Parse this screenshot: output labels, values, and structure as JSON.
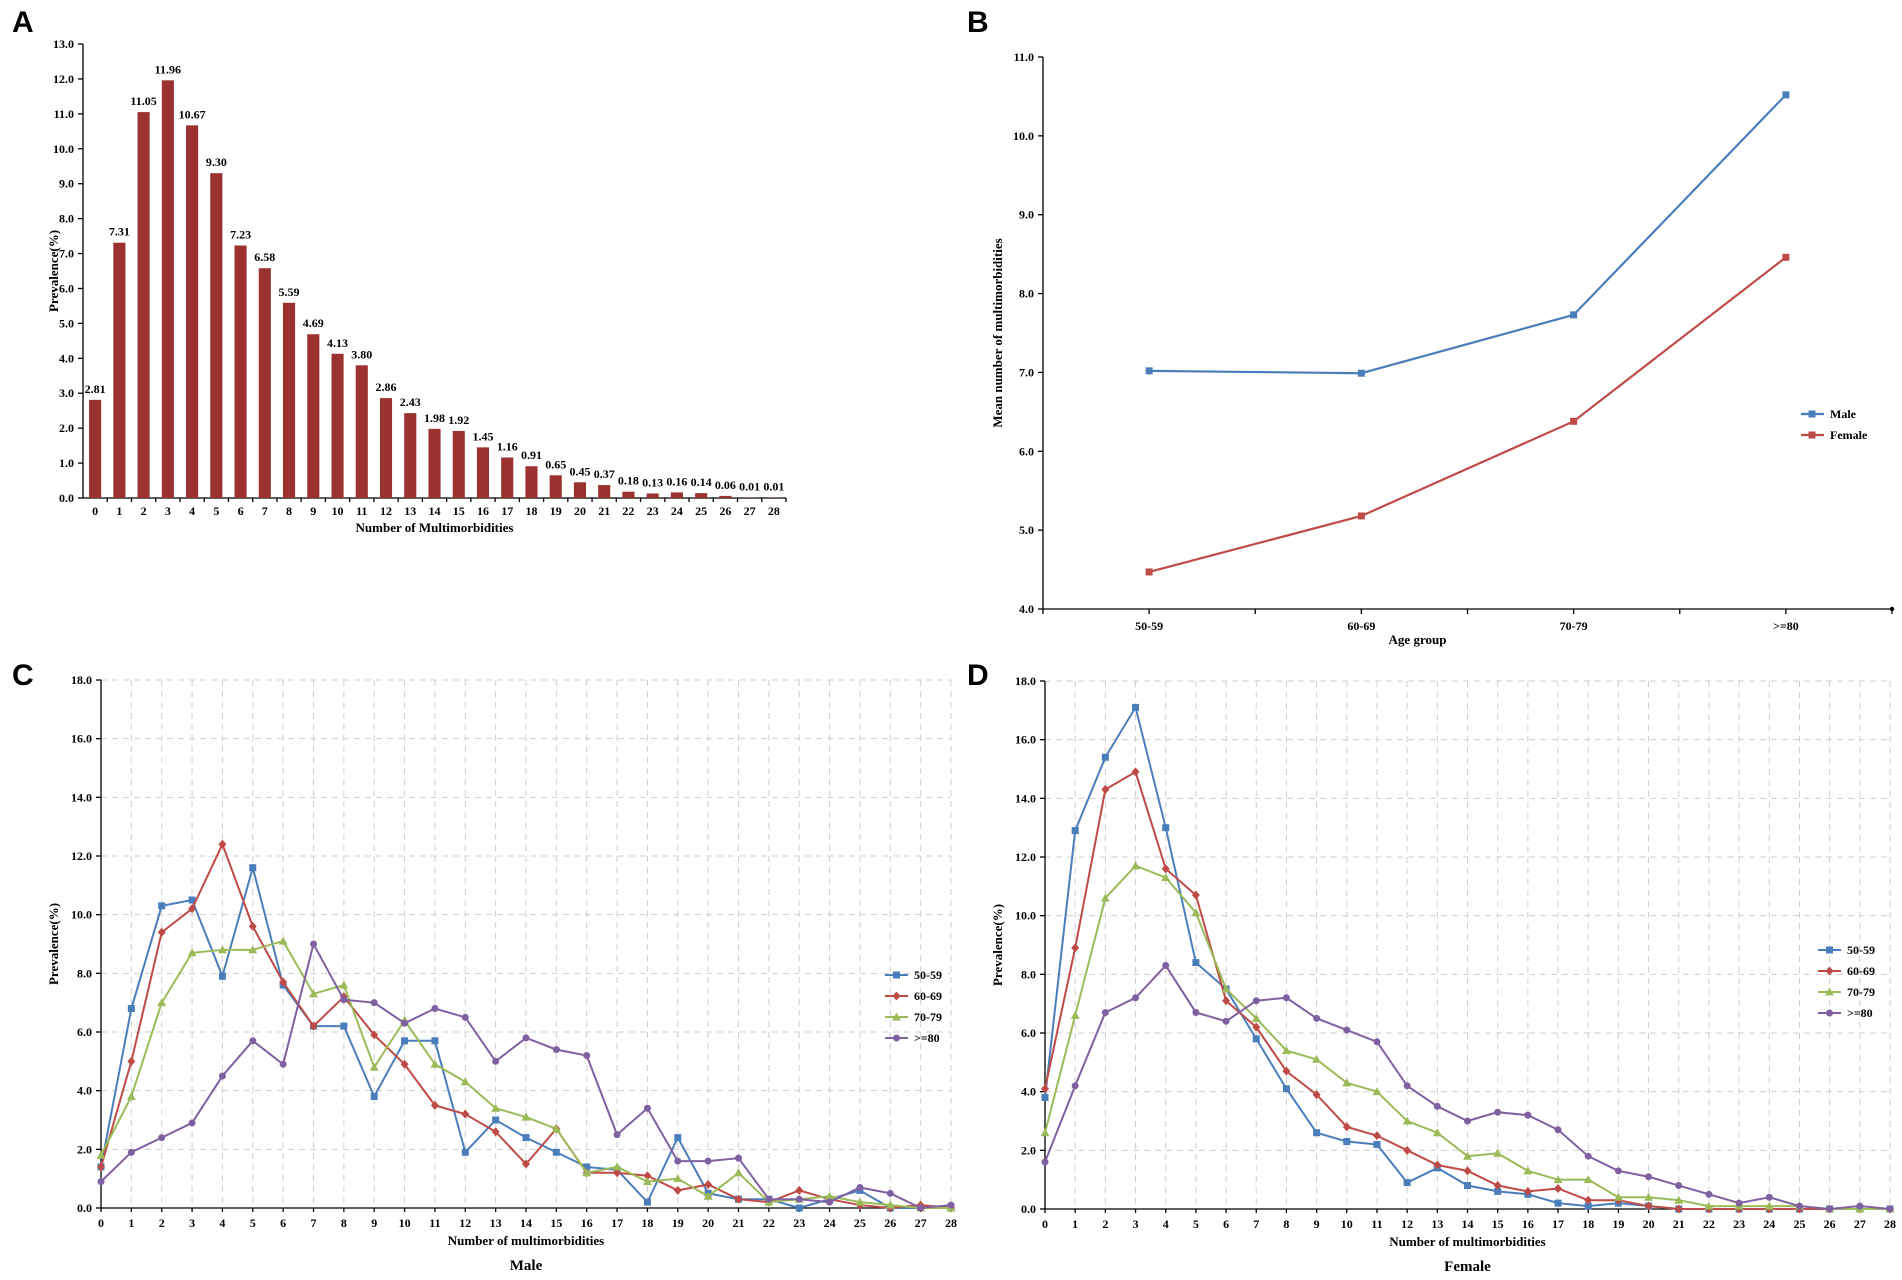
{
  "chart_data": [
    {
      "panel": "A",
      "type": "bar",
      "title": "",
      "xlabel": "Number of Multimorbidities",
      "ylabel": "Prevalence(%)",
      "ylim": [
        0,
        13
      ],
      "ytick_labels": [
        "0.0",
        "1.0",
        "2.0",
        "3.0",
        "4.0",
        "5.0",
        "6.0",
        "7.0",
        "8.0",
        "9.0",
        "10.0",
        "11.0",
        "12.0",
        "13.0"
      ],
      "categories": [
        "0",
        "1",
        "2",
        "3",
        "4",
        "5",
        "6",
        "7",
        "8",
        "9",
        "10",
        "11",
        "12",
        "13",
        "14",
        "15",
        "16",
        "17",
        "18",
        "19",
        "20",
        "21",
        "22",
        "23",
        "24",
        "25",
        "26",
        "27",
        "28"
      ],
      "values": [
        2.81,
        7.31,
        11.05,
        11.96,
        10.67,
        9.3,
        7.23,
        6.58,
        5.59,
        4.69,
        4.13,
        3.8,
        2.86,
        2.43,
        1.98,
        1.92,
        1.45,
        1.16,
        0.91,
        0.65,
        0.45,
        0.37,
        0.18,
        0.13,
        0.16,
        0.14,
        0.06,
        0.01,
        0.01
      ],
      "data_labels": [
        "2.81",
        "7.31",
        "11.05",
        "11.96",
        "10.67",
        "9.30",
        "7.23",
        "6.58",
        "5.59",
        "4.69",
        "4.13",
        "3.80",
        "2.86",
        "2.43",
        "1.98",
        "1.92",
        "1.45",
        "1.16",
        "0.91",
        "0.65",
        "0.45",
        "0.37",
        "0.18",
        "0.13",
        "0.16",
        "0.14",
        "0.06",
        "0.01",
        "0.01"
      ],
      "color": "#9b3230"
    },
    {
      "panel": "B",
      "type": "line",
      "title": "",
      "xlabel": "Age group",
      "ylabel": "Mean number of multimorbidities",
      "ylim": [
        4,
        11
      ],
      "ytick_labels": [
        "4.0",
        "5.0",
        "6.0",
        "7.0",
        "8.0",
        "9.0",
        "10.0",
        "11.0"
      ],
      "categories": [
        "50-59",
        "60-69",
        "70-79",
        ">=80"
      ],
      "series": [
        {
          "name": "Male",
          "color": "#4a7ebb",
          "values": [
            7.02,
            6.99,
            7.73,
            10.52
          ]
        },
        {
          "name": "Female",
          "color": "#be4b48",
          "values": [
            4.47,
            5.18,
            6.38,
            8.46
          ]
        }
      ],
      "legend": "right"
    },
    {
      "panel": "C",
      "type": "line",
      "title": "",
      "caption": "Male",
      "xlabel": "Number of multimorbidities",
      "ylabel": "Prevalence(%)",
      "ylim": [
        0,
        18
      ],
      "ytick_labels": [
        "0.0",
        "2.0",
        "4.0",
        "6.0",
        "8.0",
        "10.0",
        "12.0",
        "14.0",
        "16.0",
        "18.0"
      ],
      "categories": [
        "0",
        "1",
        "2",
        "3",
        "4",
        "5",
        "6",
        "7",
        "8",
        "9",
        "10",
        "11",
        "12",
        "13",
        "14",
        "15",
        "16",
        "17",
        "18",
        "19",
        "20",
        "21",
        "22",
        "23",
        "24",
        "25",
        "26",
        "27",
        "28"
      ],
      "series": [
        {
          "name": "50-59",
          "color": "#4a7ebb",
          "marker": "square",
          "values": [
            1.4,
            6.8,
            10.3,
            10.5,
            7.9,
            11.6,
            7.6,
            6.2,
            6.2,
            3.8,
            5.7,
            5.7,
            1.9,
            3.0,
            2.4,
            1.9,
            1.4,
            1.3,
            0.2,
            2.4,
            0.5,
            0.3,
            0.3,
            0.0,
            0.3,
            0.6,
            0.0,
            0.0,
            0.0
          ]
        },
        {
          "name": "60-69",
          "color": "#be4b48",
          "marker": "diamond",
          "values": [
            1.4,
            5.0,
            9.4,
            10.2,
            12.4,
            9.6,
            7.7,
            6.2,
            7.2,
            5.9,
            4.9,
            3.5,
            3.2,
            2.6,
            1.5,
            2.7,
            1.2,
            1.2,
            1.1,
            0.6,
            0.8,
            0.3,
            0.2,
            0.6,
            0.3,
            0.1,
            0.0,
            0.1,
            0.0
          ]
        },
        {
          "name": "70-79",
          "color": "#9bbb59",
          "marker": "triangle",
          "values": [
            1.8,
            3.8,
            7.0,
            8.7,
            8.8,
            8.8,
            9.1,
            7.3,
            7.6,
            4.8,
            6.4,
            4.9,
            4.3,
            3.4,
            3.1,
            2.7,
            1.2,
            1.4,
            0.9,
            1.0,
            0.4,
            1.2,
            0.2,
            0.3,
            0.4,
            0.2,
            0.1,
            0.0,
            0.0
          ]
        },
        {
          "name": ">=80",
          "color": "#7f60a0",
          "marker": "circle",
          "values": [
            0.9,
            1.9,
            2.4,
            2.9,
            4.5,
            5.7,
            4.9,
            9.0,
            7.1,
            7.0,
            6.3,
            6.8,
            6.5,
            5.0,
            5.8,
            5.4,
            5.2,
            2.5,
            3.4,
            1.6,
            1.6,
            1.7,
            0.3,
            0.3,
            0.2,
            0.7,
            0.5,
            0.0,
            0.1
          ]
        }
      ],
      "legend": "right"
    },
    {
      "panel": "D",
      "type": "line",
      "title": "",
      "caption": "Female",
      "xlabel": "Number of multimorbidities",
      "ylabel": "Prevalence(%)",
      "ylim": [
        0,
        18
      ],
      "ytick_labels": [
        "0.0",
        "2.0",
        "4.0",
        "6.0",
        "8.0",
        "10.0",
        "12.0",
        "14.0",
        "16.0",
        "18.0"
      ],
      "categories": [
        "0",
        "1",
        "2",
        "3",
        "4",
        "5",
        "6",
        "7",
        "8",
        "9",
        "10",
        "11",
        "12",
        "13",
        "14",
        "15",
        "16",
        "17",
        "18",
        "19",
        "20",
        "21",
        "22",
        "23",
        "24",
        "25",
        "26",
        "27",
        "28"
      ],
      "series": [
        {
          "name": "50-59",
          "color": "#4a7ebb",
          "marker": "square",
          "values": [
            3.8,
            12.9,
            15.4,
            17.1,
            13.0,
            8.4,
            7.5,
            5.8,
            4.1,
            2.6,
            2.3,
            2.2,
            0.9,
            1.4,
            0.8,
            0.6,
            0.5,
            0.2,
            0.1,
            0.2,
            0.1,
            0.0,
            0.0,
            0.0,
            0.0,
            0.0,
            0.0,
            0.0,
            0.0
          ]
        },
        {
          "name": "60-69",
          "color": "#be4b48",
          "marker": "diamond",
          "values": [
            4.1,
            8.9,
            14.3,
            14.9,
            11.6,
            10.7,
            7.1,
            6.2,
            4.7,
            3.9,
            2.8,
            2.5,
            2.0,
            1.5,
            1.3,
            0.8,
            0.6,
            0.7,
            0.3,
            0.3,
            0.1,
            0.0,
            0.0,
            0.0,
            0.0,
            0.0,
            0.0,
            0.0,
            0.0
          ]
        },
        {
          "name": "70-79",
          "color": "#9bbb59",
          "marker": "triangle",
          "values": [
            2.6,
            6.6,
            10.6,
            11.7,
            11.3,
            10.1,
            7.5,
            6.5,
            5.4,
            5.1,
            4.3,
            4.0,
            3.0,
            2.6,
            1.8,
            1.9,
            1.3,
            1.0,
            1.0,
            0.4,
            0.4,
            0.3,
            0.1,
            0.1,
            0.1,
            0.1,
            0.0,
            0.0,
            0.0
          ]
        },
        {
          "name": ">=80",
          "color": "#7f60a0",
          "marker": "circle",
          "values": [
            1.6,
            4.2,
            6.7,
            7.2,
            8.3,
            6.7,
            6.4,
            7.1,
            7.2,
            6.5,
            6.1,
            5.7,
            4.2,
            3.5,
            3.0,
            3.3,
            3.2,
            2.7,
            1.8,
            1.3,
            1.1,
            0.8,
            0.5,
            0.2,
            0.4,
            0.1,
            0.0,
            0.1,
            0.0
          ]
        }
      ],
      "legend": "right"
    }
  ]
}
